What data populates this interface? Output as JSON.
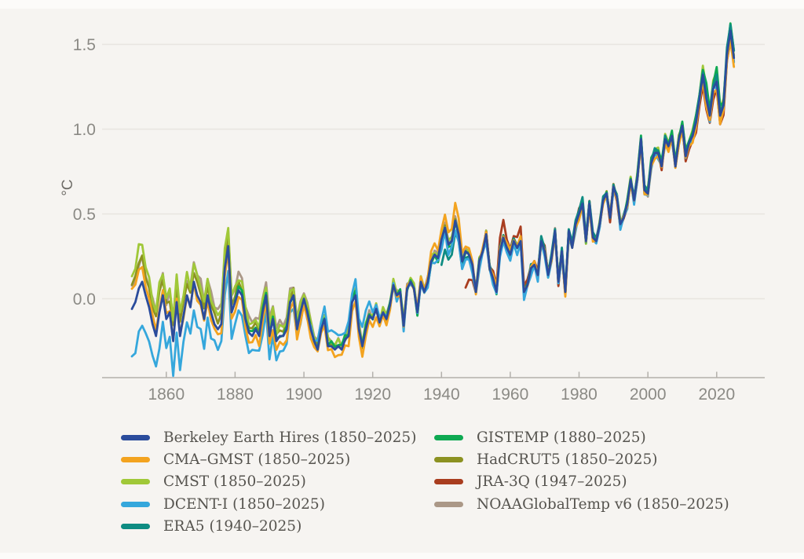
{
  "page": {
    "background": "#f6f4f1",
    "frame_color": "#fcfbf9"
  },
  "chart_data": {
    "type": "line",
    "title": "",
    "xlabel": "",
    "ylabel": "°C",
    "x_start": 1850,
    "x_end": 2025,
    "xticks": [
      "1860",
      "1880",
      "1900",
      "1920",
      "1940",
      "1960",
      "1980",
      "2000",
      "2020"
    ],
    "xtick_values": [
      1860,
      1880,
      1900,
      1920,
      1940,
      1960,
      1980,
      2000,
      2020
    ],
    "yticks": [
      "0.0",
      "0.5",
      "1.0",
      "1.5"
    ],
    "ytick_values": [
      0.0,
      0.5,
      1.0,
      1.5
    ],
    "ylim": [
      -0.47,
      1.67
    ],
    "grid": true,
    "legend_position": "bottom",
    "axis_color": "#b3b0ab",
    "grid_color": "#e8e5e0",
    "tick_label_color": "#8b8a85",
    "unit_label_color": "#6e6c67",
    "legend_text_color": "#56544f",
    "base_values_start_year": 1850,
    "base_values": [
      -0.06,
      -0.02,
      0.06,
      0.1,
      0.02,
      -0.05,
      -0.15,
      -0.22,
      -0.08,
      0.02,
      -0.12,
      -0.08,
      -0.25,
      -0.02,
      -0.22,
      -0.1,
      0.02,
      -0.05,
      0.1,
      0.02,
      -0.02,
      -0.12,
      0.02,
      -0.08,
      -0.15,
      -0.18,
      -0.15,
      0.18,
      0.31,
      -0.08,
      -0.02,
      0.05,
      0.02,
      -0.12,
      -0.2,
      -0.22,
      -0.18,
      -0.22,
      -0.08,
      0.02,
      -0.22,
      -0.12,
      -0.25,
      -0.22,
      -0.22,
      -0.18,
      -0.02,
      0.02,
      -0.18,
      -0.08,
      0.0,
      -0.08,
      -0.18,
      -0.25,
      -0.3,
      -0.18,
      -0.12,
      -0.28,
      -0.28,
      -0.3,
      -0.28,
      -0.3,
      -0.24,
      -0.22,
      -0.02,
      0.02,
      -0.18,
      -0.28,
      -0.18,
      -0.1,
      -0.12,
      -0.06,
      -0.14,
      -0.08,
      -0.12,
      -0.04,
      0.08,
      0.02,
      0.04,
      -0.16,
      0.06,
      0.1,
      0.06,
      -0.08,
      0.1,
      0.04,
      0.1,
      0.22,
      0.26,
      0.24,
      0.35,
      0.42,
      0.32,
      0.34,
      0.46,
      0.38,
      0.22,
      0.28,
      0.26,
      0.2,
      0.04,
      0.22,
      0.28,
      0.38,
      0.18,
      0.12,
      0.04,
      0.28,
      0.36,
      0.3,
      0.26,
      0.34,
      0.3,
      0.34,
      0.04,
      0.08,
      0.18,
      0.2,
      0.14,
      0.34,
      0.28,
      0.14,
      0.24,
      0.4,
      0.1,
      0.28,
      0.04,
      0.4,
      0.3,
      0.44,
      0.5,
      0.56,
      0.34,
      0.56,
      0.36,
      0.34,
      0.44,
      0.58,
      0.62,
      0.48,
      0.66,
      0.6,
      0.44,
      0.48,
      0.56,
      0.7,
      0.58,
      0.72,
      0.94,
      0.64,
      0.62,
      0.8,
      0.86,
      0.86,
      0.78,
      0.94,
      0.9,
      0.96,
      0.78,
      0.94,
      1.02,
      0.84,
      0.92,
      0.96,
      1.04,
      1.18,
      1.32,
      1.18,
      1.08,
      1.24,
      1.28,
      1.08,
      1.14,
      1.44,
      1.58,
      1.42
    ],
    "series": [
      {
        "name": "berkeley-earth-hires",
        "label": "Berkeley Earth Hires (1850–2025)",
        "color": "#2b4c9c",
        "start": 1850,
        "end": 2025,
        "z": 9,
        "offsets": [
          [
            1850,
            0
          ],
          [
            2025,
            0
          ]
        ],
        "wiggle": [
          0,
          0,
          0
        ]
      },
      {
        "name": "cma-gmst",
        "label": "CMA–GMST (1850–2025)",
        "color": "#f3a31f",
        "start": 1850,
        "end": 2025,
        "z": 8,
        "offsets": [
          [
            1850,
            0.13
          ],
          [
            1853,
            0.08
          ],
          [
            1856,
            0.04
          ],
          [
            1860,
            0.02
          ],
          [
            1865,
            0.0
          ],
          [
            1870,
            -0.02
          ],
          [
            1875,
            -0.04
          ],
          [
            1880,
            -0.04
          ],
          [
            1890,
            -0.05
          ],
          [
            1900,
            -0.05
          ],
          [
            1905,
            -0.02
          ],
          [
            1910,
            -0.04
          ],
          [
            1915,
            -0.05
          ],
          [
            1920,
            -0.04
          ],
          [
            1925,
            -0.02
          ],
          [
            1930,
            0.0
          ],
          [
            1935,
            0.02
          ],
          [
            1938,
            0.06
          ],
          [
            1941,
            0.06
          ],
          [
            1944,
            0.1
          ],
          [
            1945,
            0.08
          ],
          [
            1947,
            0.04
          ],
          [
            1950,
            0.0
          ],
          [
            1955,
            0.02
          ],
          [
            1960,
            0.02
          ],
          [
            1970,
            0.0
          ],
          [
            1980,
            -0.02
          ],
          [
            1990,
            0.0
          ],
          [
            2000,
            -0.02
          ],
          [
            2010,
            -0.02
          ],
          [
            2016,
            -0.03
          ],
          [
            2020,
            -0.04
          ],
          [
            2024,
            -0.04
          ],
          [
            2025,
            -0.05
          ]
        ],
        "wiggle": [
          0.016,
          1.7,
          0.5
        ]
      },
      {
        "name": "cmst",
        "label": "CMST (1850–2025)",
        "color": "#a0c838",
        "start": 1850,
        "end": 2025,
        "z": 3,
        "offsets": [
          [
            1850,
            0.18
          ],
          [
            1852,
            0.25
          ],
          [
            1854,
            0.18
          ],
          [
            1856,
            0.14
          ],
          [
            1858,
            0.16
          ],
          [
            1860,
            0.12
          ],
          [
            1863,
            0.15
          ],
          [
            1866,
            0.12
          ],
          [
            1870,
            0.1
          ],
          [
            1874,
            0.08
          ],
          [
            1877,
            0.1
          ],
          [
            1878,
            0.12
          ],
          [
            1880,
            0.08
          ],
          [
            1885,
            0.06
          ],
          [
            1890,
            0.06
          ],
          [
            1895,
            0.05
          ],
          [
            1900,
            0.04
          ],
          [
            1910,
            0.03
          ],
          [
            1920,
            0.02
          ],
          [
            1930,
            0.02
          ],
          [
            1940,
            0.02
          ],
          [
            1950,
            0.01
          ],
          [
            1960,
            0.01
          ],
          [
            1970,
            0.0
          ],
          [
            1980,
            0.0
          ],
          [
            1990,
            0.01
          ],
          [
            2000,
            0.02
          ],
          [
            2010,
            0.02
          ],
          [
            2016,
            0.04
          ],
          [
            2017,
            0.06
          ],
          [
            2018,
            0.04
          ],
          [
            2019,
            0.03
          ],
          [
            2020,
            0.07
          ],
          [
            2021,
            0.04
          ],
          [
            2023,
            0.01
          ],
          [
            2024,
            0.0
          ],
          [
            2025,
            0.0
          ]
        ],
        "wiggle": [
          0.018,
          2.3,
          1.1
        ]
      },
      {
        "name": "dcent-i",
        "label": "DCENT-I (1850–2025)",
        "color": "#35a7dc",
        "start": 1850,
        "end": 2025,
        "z": 7,
        "offsets": [
          [
            1850,
            -0.3
          ],
          [
            1853,
            -0.25
          ],
          [
            1856,
            -0.18
          ],
          [
            1858,
            -0.2
          ],
          [
            1860,
            -0.15
          ],
          [
            1863,
            -0.2
          ],
          [
            1866,
            -0.15
          ],
          [
            1869,
            -0.18
          ],
          [
            1872,
            -0.15
          ],
          [
            1875,
            -0.1
          ],
          [
            1878,
            -0.16
          ],
          [
            1881,
            -0.12
          ],
          [
            1885,
            -0.1
          ],
          [
            1890,
            -0.12
          ],
          [
            1895,
            -0.08
          ],
          [
            1900,
            -0.04
          ],
          [
            1904,
            0.04
          ],
          [
            1908,
            0.1
          ],
          [
            1912,
            0.06
          ],
          [
            1916,
            0.08
          ],
          [
            1918,
            0.12
          ],
          [
            1920,
            0.04
          ],
          [
            1924,
            0.0
          ],
          [
            1928,
            -0.02
          ],
          [
            1932,
            0.0
          ],
          [
            1936,
            -0.02
          ],
          [
            1940,
            -0.04
          ],
          [
            1945,
            -0.05
          ],
          [
            1950,
            -0.03
          ],
          [
            1955,
            -0.02
          ],
          [
            1960,
            -0.03
          ],
          [
            1970,
            -0.02
          ],
          [
            1980,
            -0.02
          ],
          [
            1990,
            -0.01
          ],
          [
            2000,
            -0.02
          ],
          [
            2010,
            -0.01
          ],
          [
            2025,
            -0.02
          ]
        ],
        "wiggle": [
          0.022,
          2.9,
          2.0
        ]
      },
      {
        "name": "era5",
        "label": "ERA5 (1940–2025)",
        "color": "#0e8c82",
        "start": 1940,
        "end": 2025,
        "z": 6,
        "offsets": [
          [
            1940,
            -0.15
          ],
          [
            1941,
            -0.12
          ],
          [
            1942,
            -0.1
          ],
          [
            1943,
            -0.08
          ],
          [
            1944,
            -0.06
          ],
          [
            1946,
            -0.04
          ],
          [
            1948,
            -0.02
          ],
          [
            1950,
            0.0
          ],
          [
            1955,
            0.01
          ],
          [
            1960,
            0.02
          ],
          [
            1965,
            0.01
          ],
          [
            1970,
            0.02
          ],
          [
            1975,
            0.01
          ],
          [
            1980,
            0.03
          ],
          [
            1985,
            0.02
          ],
          [
            1990,
            0.0
          ],
          [
            1995,
            0.01
          ],
          [
            2000,
            0.02
          ],
          [
            2005,
            0.01
          ],
          [
            2010,
            0.0
          ],
          [
            2015,
            0.02
          ],
          [
            2018,
            0.02
          ],
          [
            2020,
            0.03
          ],
          [
            2022,
            0.02
          ],
          [
            2023,
            0.03
          ],
          [
            2024,
            0.04
          ],
          [
            2025,
            0.05
          ]
        ],
        "wiggle": [
          0.012,
          2.1,
          0.7
        ]
      },
      {
        "name": "gistemp",
        "label": "GISTEMP (1880–2025)",
        "color": "#0ea952",
        "start": 1880,
        "end": 2025,
        "z": 4,
        "offsets": [
          [
            1880,
            0.02
          ],
          [
            1890,
            0.01
          ],
          [
            1900,
            0.0
          ],
          [
            1910,
            0.02
          ],
          [
            1920,
            0.01
          ],
          [
            1930,
            0.0
          ],
          [
            1940,
            -0.02
          ],
          [
            1950,
            0.0
          ],
          [
            1960,
            0.0
          ],
          [
            1970,
            0.01
          ],
          [
            1980,
            0.0
          ],
          [
            1990,
            0.0
          ],
          [
            2000,
            0.02
          ],
          [
            2010,
            0.02
          ],
          [
            2015,
            0.03
          ],
          [
            2016,
            0.04
          ],
          [
            2017,
            0.08
          ],
          [
            2018,
            0.03
          ],
          [
            2019,
            0.04
          ],
          [
            2020,
            0.08
          ],
          [
            2021,
            0.05
          ],
          [
            2022,
            0.03
          ],
          [
            2023,
            0.01
          ],
          [
            2024,
            0.03
          ],
          [
            2025,
            0.05
          ]
        ],
        "wiggle": [
          0.014,
          1.9,
          1.5
        ]
      },
      {
        "name": "hadcrut5",
        "label": "HadCRUT5 (1850–2025)",
        "color": "#8c9222",
        "start": 1850,
        "end": 2025,
        "z": 2,
        "offsets": [
          [
            1850,
            0.14
          ],
          [
            1852,
            0.16
          ],
          [
            1855,
            0.1
          ],
          [
            1858,
            0.12
          ],
          [
            1860,
            0.08
          ],
          [
            1865,
            0.08
          ],
          [
            1870,
            0.06
          ],
          [
            1875,
            0.05
          ],
          [
            1880,
            0.04
          ],
          [
            1890,
            0.04
          ],
          [
            1900,
            0.02
          ],
          [
            1910,
            0.01
          ],
          [
            1920,
            0.0
          ],
          [
            1940,
            0.0
          ],
          [
            1960,
            0.01
          ],
          [
            1980,
            0.0
          ],
          [
            2000,
            0.0
          ],
          [
            2016,
            0.02
          ],
          [
            2020,
            0.02
          ],
          [
            2024,
            -0.02
          ],
          [
            2025,
            0.0
          ]
        ],
        "wiggle": [
          0.016,
          2.7,
          0.3
        ]
      },
      {
        "name": "jra-3q",
        "label": "JRA-3Q (1947–2025)",
        "color": "#a93d1f",
        "start": 1947,
        "end": 2025,
        "z": 5,
        "offsets": [
          [
            1947,
            -0.22
          ],
          [
            1948,
            -0.15
          ],
          [
            1949,
            -0.08
          ],
          [
            1950,
            -0.02
          ],
          [
            1952,
            0.0
          ],
          [
            1955,
            0.03
          ],
          [
            1958,
            0.1
          ],
          [
            1960,
            0.02
          ],
          [
            1963,
            0.08
          ],
          [
            1965,
            0.02
          ],
          [
            1970,
            0.02
          ],
          [
            1975,
            -0.02
          ],
          [
            1980,
            0.02
          ],
          [
            1990,
            -0.02
          ],
          [
            2000,
            0.0
          ],
          [
            2010,
            -0.02
          ],
          [
            2016,
            -0.06
          ],
          [
            2020,
            -0.05
          ],
          [
            2021,
            -0.05
          ],
          [
            2024,
            -0.05
          ],
          [
            2025,
            -0.03
          ]
        ],
        "wiggle": [
          0.014,
          2.5,
          2.4
        ]
      },
      {
        "name": "noaaglobaltemp-v6",
        "label": "NOAAGlobalTemp v6 (1850–2025)",
        "color": "#ab9887",
        "start": 1850,
        "end": 2025,
        "z": 1,
        "offsets": [
          [
            1850,
            0.12
          ],
          [
            1852,
            0.14
          ],
          [
            1855,
            0.12
          ],
          [
            1857,
            0.16
          ],
          [
            1860,
            0.1
          ],
          [
            1863,
            0.14
          ],
          [
            1866,
            0.1
          ],
          [
            1869,
            0.13
          ],
          [
            1872,
            0.1
          ],
          [
            1875,
            0.12
          ],
          [
            1878,
            0.08
          ],
          [
            1881,
            0.1
          ],
          [
            1885,
            0.08
          ],
          [
            1890,
            0.09
          ],
          [
            1895,
            0.07
          ],
          [
            1900,
            0.05
          ],
          [
            1905,
            0.04
          ],
          [
            1910,
            0.03
          ],
          [
            1915,
            0.03
          ],
          [
            1920,
            0.02
          ],
          [
            1930,
            0.01
          ],
          [
            1940,
            0.02
          ],
          [
            1950,
            0.0
          ],
          [
            1960,
            0.01
          ],
          [
            1970,
            0.0
          ],
          [
            1980,
            0.0
          ],
          [
            1990,
            0.0
          ],
          [
            2000,
            0.0
          ],
          [
            2010,
            0.0
          ],
          [
            2025,
            0.0
          ]
        ],
        "wiggle": [
          0.018,
          2.2,
          3.0
        ]
      }
    ],
    "legend_columns": [
      [
        0,
        1,
        2,
        3,
        4
      ],
      [
        5,
        6,
        7,
        8
      ]
    ]
  }
}
